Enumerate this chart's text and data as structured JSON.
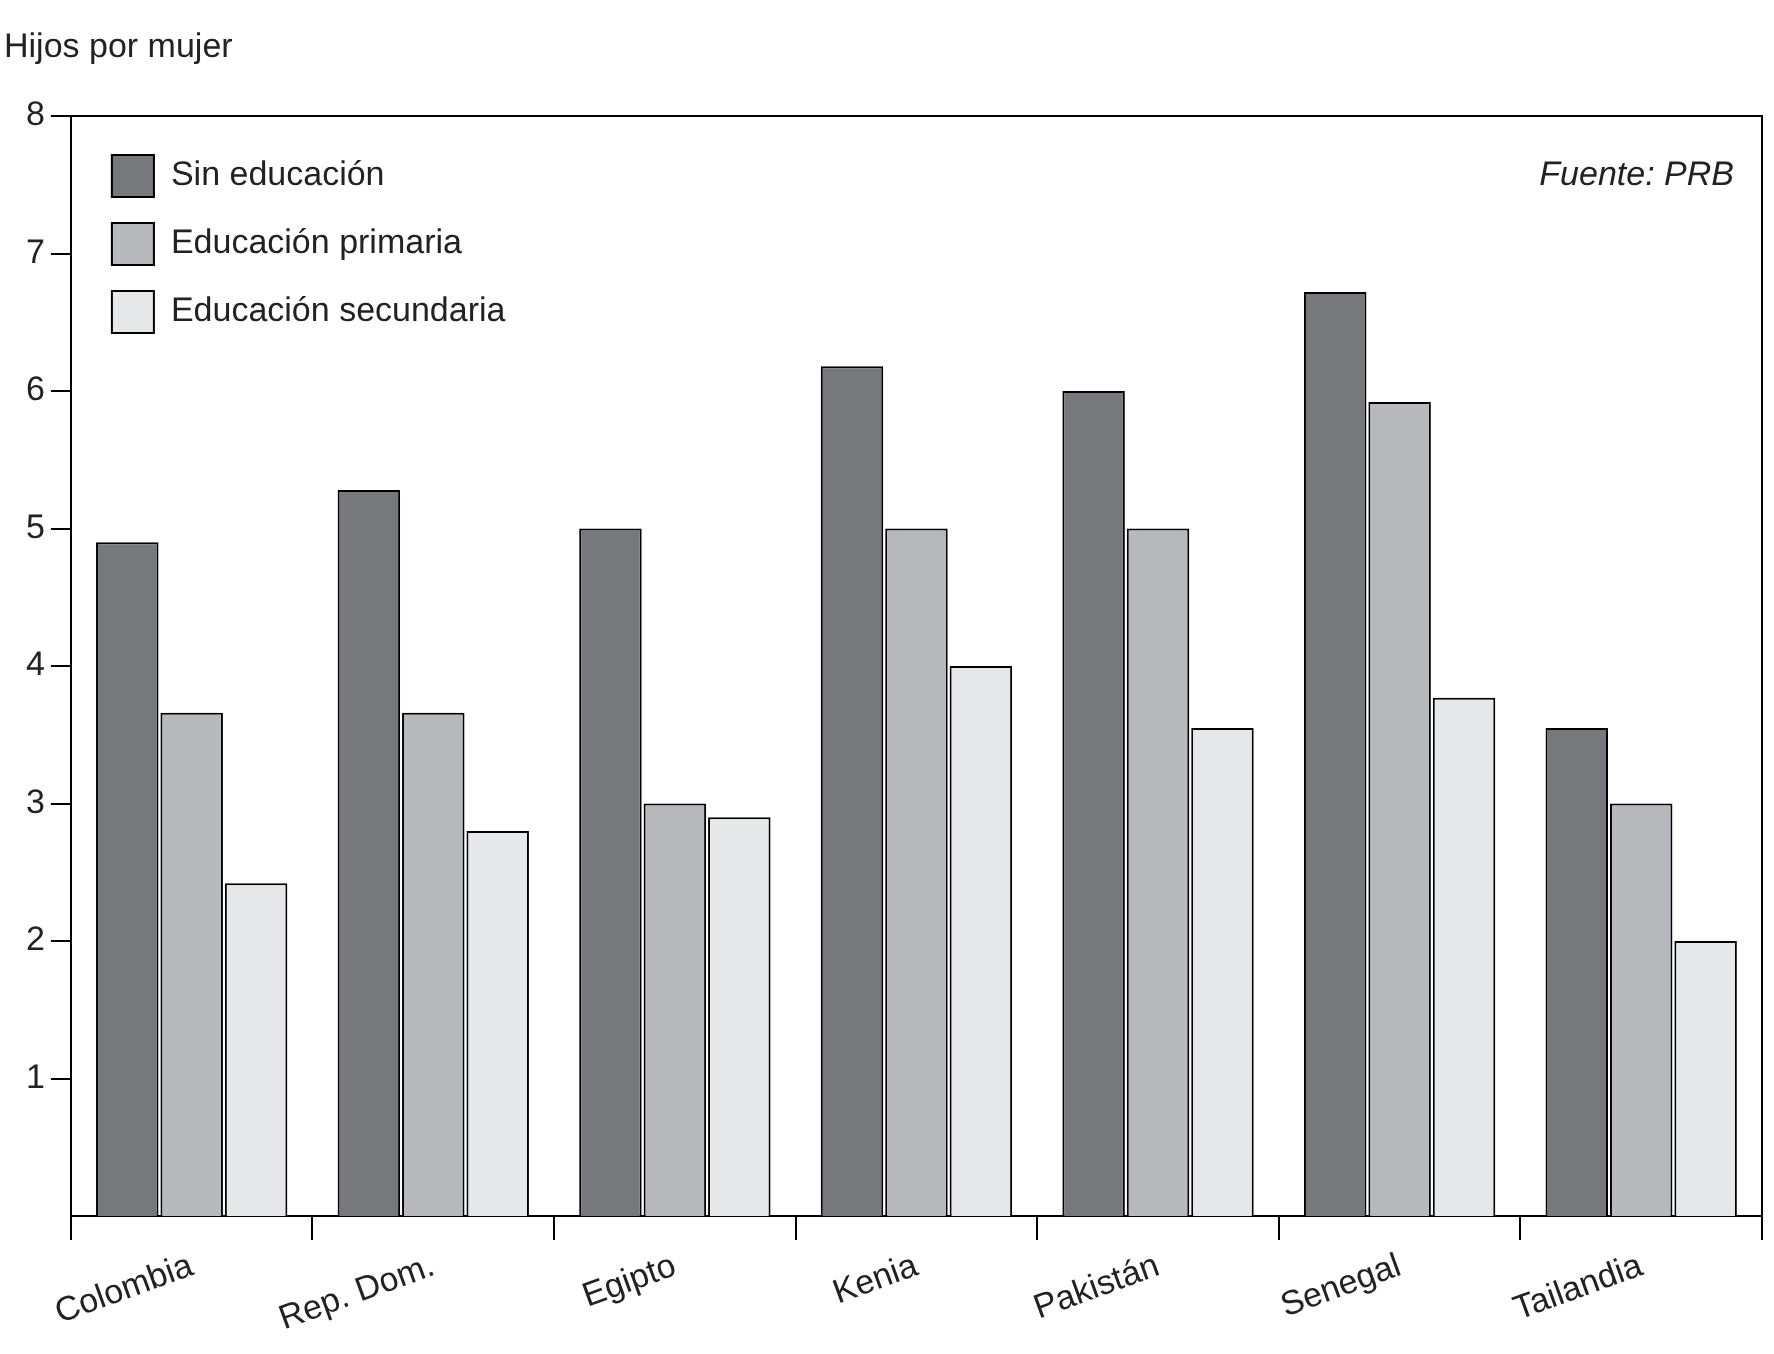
{
  "chart_data": {
    "type": "bar",
    "ylabel": "Hijos por mujer",
    "annotations": [
      "Fuente: PRB"
    ],
    "categories": [
      "Colombia",
      "Rep. Dom.",
      "Egipto",
      "Kenia",
      "Pakistán",
      "Senegal",
      "Tailandia"
    ],
    "series": [
      {
        "name": "Sin educación",
        "color": "#77787b",
        "values": [
          4.9,
          5.28,
          5.0,
          6.18,
          6.0,
          6.72,
          3.55
        ]
      },
      {
        "name": "Educación primaria",
        "color": "#b8b9bd",
        "values": [
          3.66,
          3.66,
          3.0,
          5.0,
          5.0,
          5.92,
          3.0
        ]
      },
      {
        "name": "Educación secundaria",
        "color": "#e6e7e8",
        "values": [
          2.42,
          2.8,
          2.9,
          4.0,
          3.55,
          3.77,
          2.0
        ]
      }
    ],
    "ylim": [
      0,
      8
    ],
    "yticks": [
      1,
      2,
      3,
      4,
      5,
      6,
      7,
      8
    ],
    "grid": false,
    "legend": "top left"
  }
}
